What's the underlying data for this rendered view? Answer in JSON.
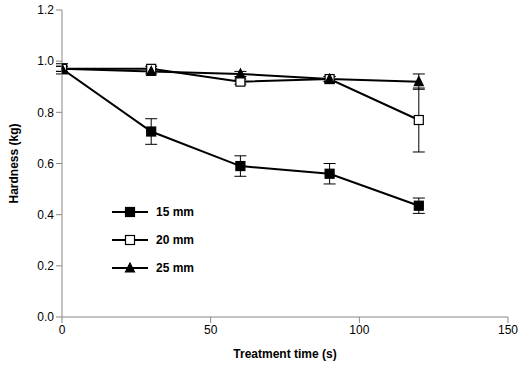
{
  "chart_data": {
    "type": "line",
    "x_label": "Treatment time (s)",
    "y_label": "Hardness (kg)",
    "x": [
      0,
      30,
      60,
      90,
      120
    ],
    "xlim": [
      0,
      150
    ],
    "xticks": [
      0,
      50,
      100,
      150
    ],
    "ylim": [
      0,
      1.2
    ],
    "yticks": [
      {
        "value": 0,
        "label": "0.0"
      },
      {
        "value": 0.2,
        "label": "0.2"
      },
      {
        "value": 0.4,
        "label": "0.4"
      },
      {
        "value": 0.6,
        "label": "0.6"
      },
      {
        "value": 0.8,
        "label": "0.8"
      },
      {
        "value": 1,
        "label": "1.0"
      },
      {
        "value": 1.2,
        "label": "1.2"
      }
    ],
    "grid": false,
    "legend": "lower left",
    "series": [
      {
        "name": "15 mm",
        "color": "#000000",
        "marker": "filled_square",
        "values": [
          0.97,
          0.725,
          0.59,
          0.56,
          0.435
        ],
        "errors": [
          0.02,
          0.05,
          0.04,
          0.04,
          0.03
        ]
      },
      {
        "name": "20 mm",
        "color": "#000000",
        "marker": "open_square",
        "values": [
          0.97,
          0.97,
          0.92,
          0.93,
          0.77
        ],
        "errors": [
          0.01,
          0.01,
          0.01,
          0.01,
          0.125
        ]
      },
      {
        "name": "25 mm",
        "color": "#000000",
        "marker": "filled_triangle",
        "values": [
          0.97,
          0.96,
          0.95,
          0.93,
          0.92
        ],
        "errors": [
          0.01,
          0.01,
          0.01,
          0.01,
          0.03
        ]
      }
    ]
  }
}
